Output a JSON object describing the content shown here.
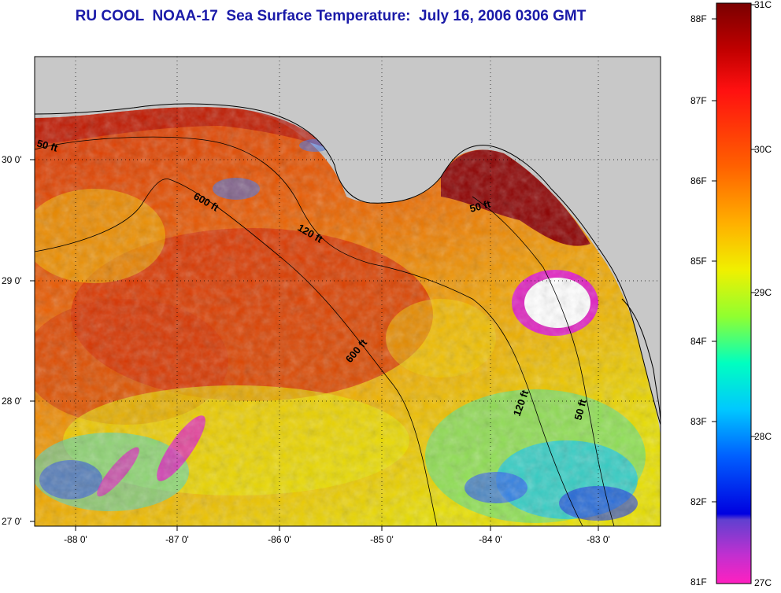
{
  "title": "RU COOL  NOAA-17  Sea Surface Temperature:  July 16, 2006 0306 GMT",
  "map": {
    "lon_labels": [
      "-88 0'",
      "-87 0'",
      "-86 0'",
      "-85 0'",
      "-84 0'",
      "-83 0'"
    ],
    "lat_labels": [
      "30 0'",
      "29 0'",
      "28 0'",
      "27 0'"
    ],
    "contour_labels": [
      "50 ft",
      "600 ft",
      "120 ft",
      "50 ft",
      "600 ft",
      "120 ft",
      "50 ft"
    ],
    "colors": {
      "land": "#c8c8c8",
      "cloud": "#ffffff",
      "hot": "#a00000"
    }
  },
  "colorbar": {
    "fahrenheit_labels": [
      "88F",
      "87F",
      "86F",
      "85F",
      "84F",
      "83F",
      "82F",
      "81F"
    ],
    "celsius_labels": [
      "31C",
      "30C",
      "29C",
      "28C",
      "27C"
    ]
  }
}
